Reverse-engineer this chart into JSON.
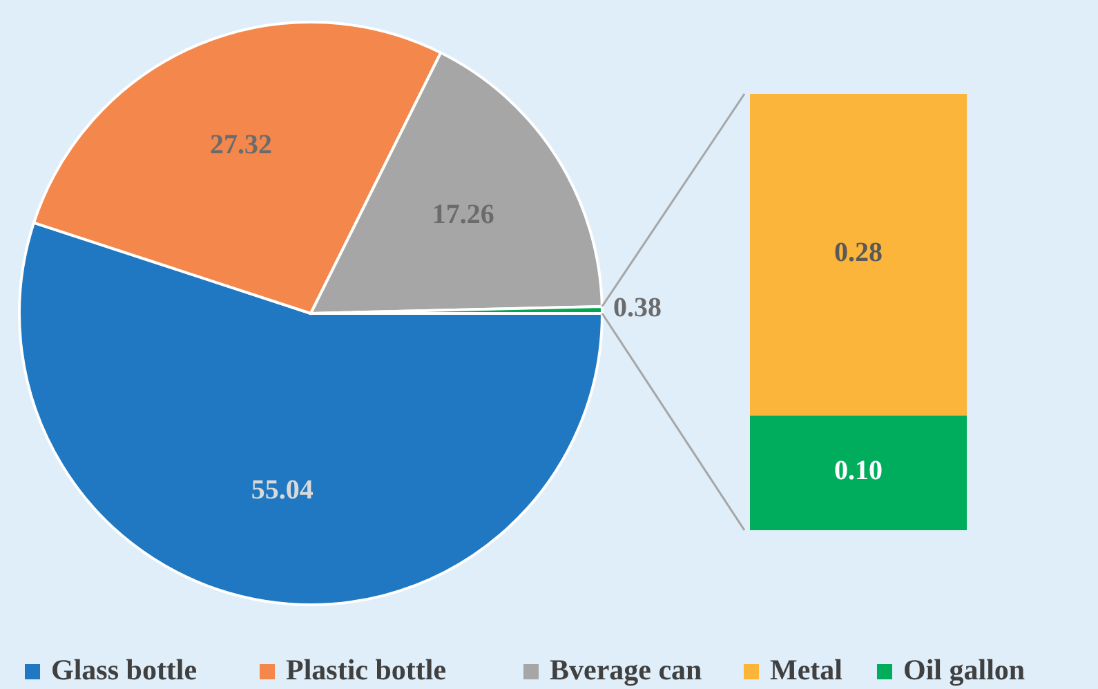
{
  "chart_data": [
    {
      "type": "pie",
      "categories": [
        "Glass bottle",
        "Plastic bottle",
        "Bverage can",
        null
      ],
      "values": [
        55.04,
        27.32,
        17.26,
        0.38
      ],
      "colors": [
        "#1f78c1",
        "#f4874b",
        "#a6a6a6",
        "#00a651"
      ],
      "data_labels": true,
      "legend": "bottom"
    },
    {
      "type": "bar",
      "stacked": true,
      "categories": [
        null
      ],
      "ylim": [
        0,
        0.38
      ],
      "tick_labels": false,
      "series": [
        {
          "name": "Oil gallon",
          "color": "#00ad5c",
          "values": [
            0.1
          ],
          "value_labels": [
            "0.10"
          ]
        },
        {
          "name": "Metal",
          "color": "#fbb53b",
          "values": [
            0.28
          ],
          "value_labels": [
            "0.28"
          ]
        }
      ],
      "legend": "bottom"
    }
  ]
}
